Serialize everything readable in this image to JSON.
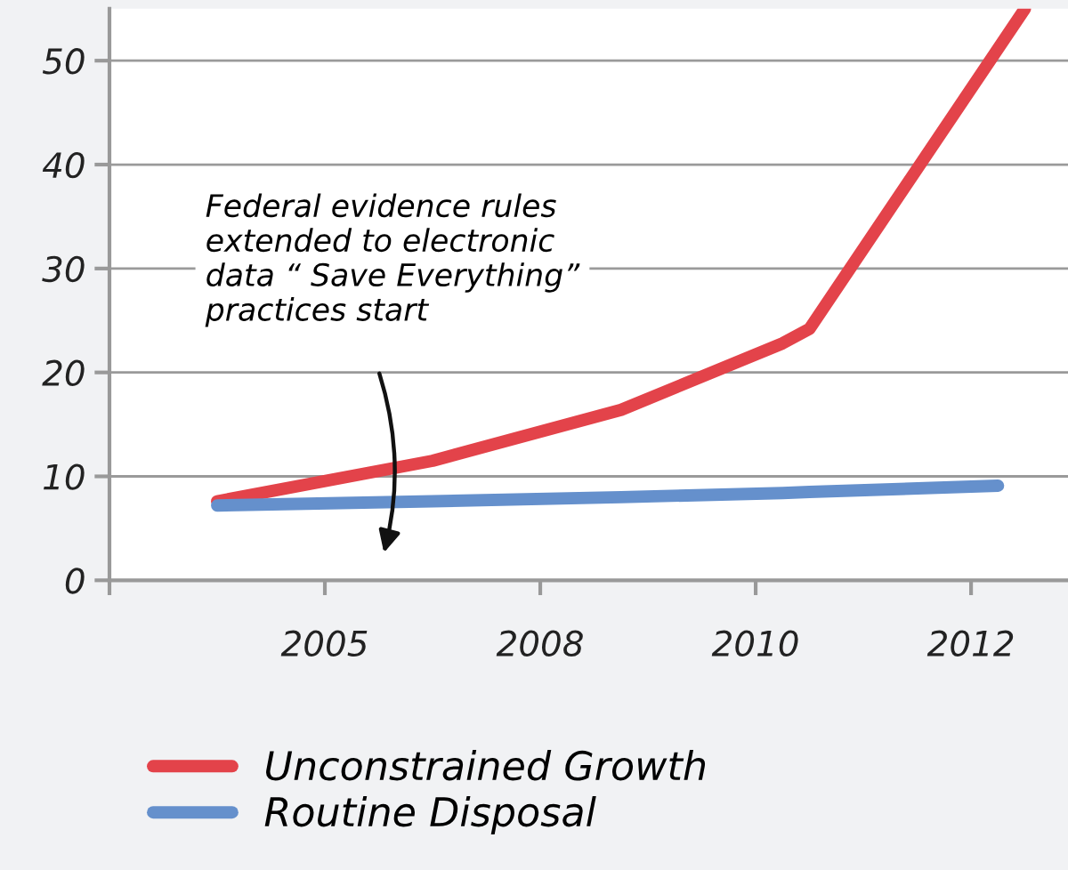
{
  "chart_data": {
    "type": "line",
    "categories": [
      null,
      null,
      null,
      null,
      null,
      null,
      null,
      null,
      "2005",
      null,
      null,
      null,
      null,
      null,
      null,
      null,
      "2008",
      null,
      null,
      null,
      null,
      null,
      null,
      null,
      "2010",
      null,
      null,
      null,
      null,
      null,
      null,
      null,
      "2012",
      null,
      null,
      null
    ],
    "series": [
      {
        "name": "Unconstrained Growth",
        "color": "#e3434a",
        "values": [
          null,
          null,
          null,
          null,
          7.6,
          null,
          null,
          null,
          null,
          null,
          null,
          null,
          11.5,
          null,
          null,
          null,
          null,
          null,
          null,
          16.4,
          null,
          null,
          null,
          null,
          null,
          22.8,
          24.2,
          null,
          null,
          null,
          null,
          null,
          null,
          null,
          55,
          null
        ]
      },
      {
        "name": "Routine Disposal",
        "color": "#6590cc",
        "values": [
          null,
          null,
          null,
          null,
          7.2,
          null,
          null,
          null,
          null,
          null,
          null,
          null,
          7.6,
          null,
          null,
          null,
          null,
          null,
          null,
          8.0,
          null,
          null,
          null,
          null,
          null,
          8.4,
          8.5,
          null,
          null,
          null,
          null,
          null,
          null,
          9.1,
          null,
          null
        ]
      }
    ],
    "ylim": [
      0,
      55
    ],
    "yticks": [
      0,
      10,
      20,
      30,
      40,
      50
    ],
    "grid": "y",
    "legend": "bottom left",
    "marker": "none",
    "line_style": "solid",
    "annotations": [
      "Federal evidence rules\nextended to electronic\ndata “ Save Everything”\npractices start"
    ]
  }
}
